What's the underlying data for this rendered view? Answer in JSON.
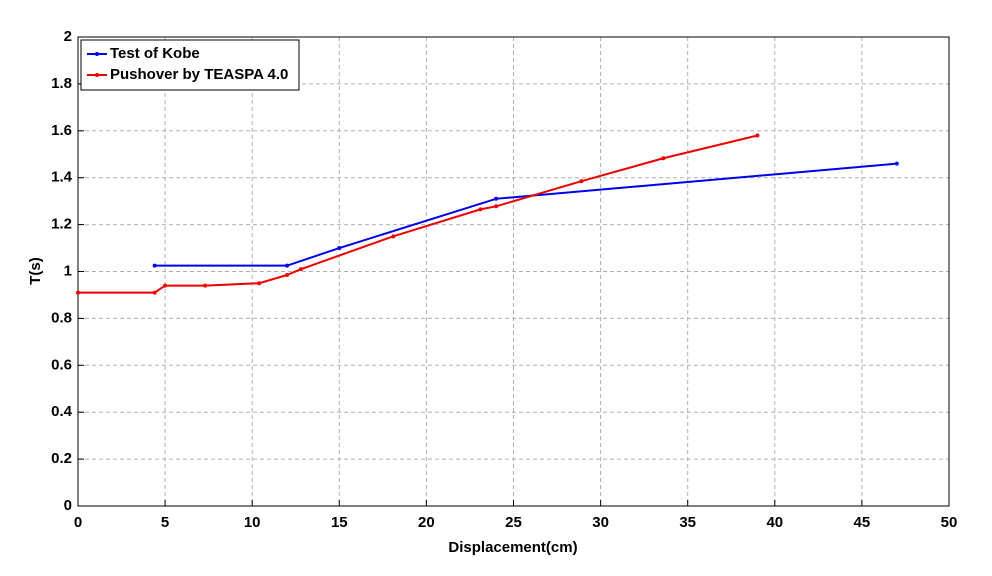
{
  "chart_data": {
    "type": "line",
    "xlabel": "Displacement(cm)",
    "ylabel": "T(s)",
    "xlim": [
      0,
      50
    ],
    "xticks": [
      0,
      5,
      10,
      15,
      20,
      25,
      30,
      35,
      40,
      45,
      50
    ],
    "ylim": [
      0,
      2
    ],
    "yticks": [
      0,
      0.2,
      0.4,
      0.6,
      0.8,
      1,
      1.2,
      1.4,
      1.6,
      1.8,
      2
    ],
    "grid": true,
    "legend": "upper left",
    "series": [
      {
        "name": "Test of Kobe",
        "color": "#0000ee",
        "x": [
          4.4,
          12,
          15,
          24,
          47
        ],
        "values": [
          1.025,
          1.025,
          1.1,
          1.31,
          1.46
        ]
      },
      {
        "name": "Pushover by TEASPA 4.0",
        "color": "#ee0000",
        "x": [
          0,
          4.4,
          5,
          7.3,
          10.4,
          12,
          12.8,
          18.1,
          23.1,
          24,
          28.9,
          33.6,
          39
        ],
        "values": [
          0.91,
          0.91,
          0.94,
          0.94,
          0.95,
          0.985,
          1.01,
          1.15,
          1.265,
          1.278,
          1.385,
          1.483,
          1.58
        ]
      }
    ]
  }
}
